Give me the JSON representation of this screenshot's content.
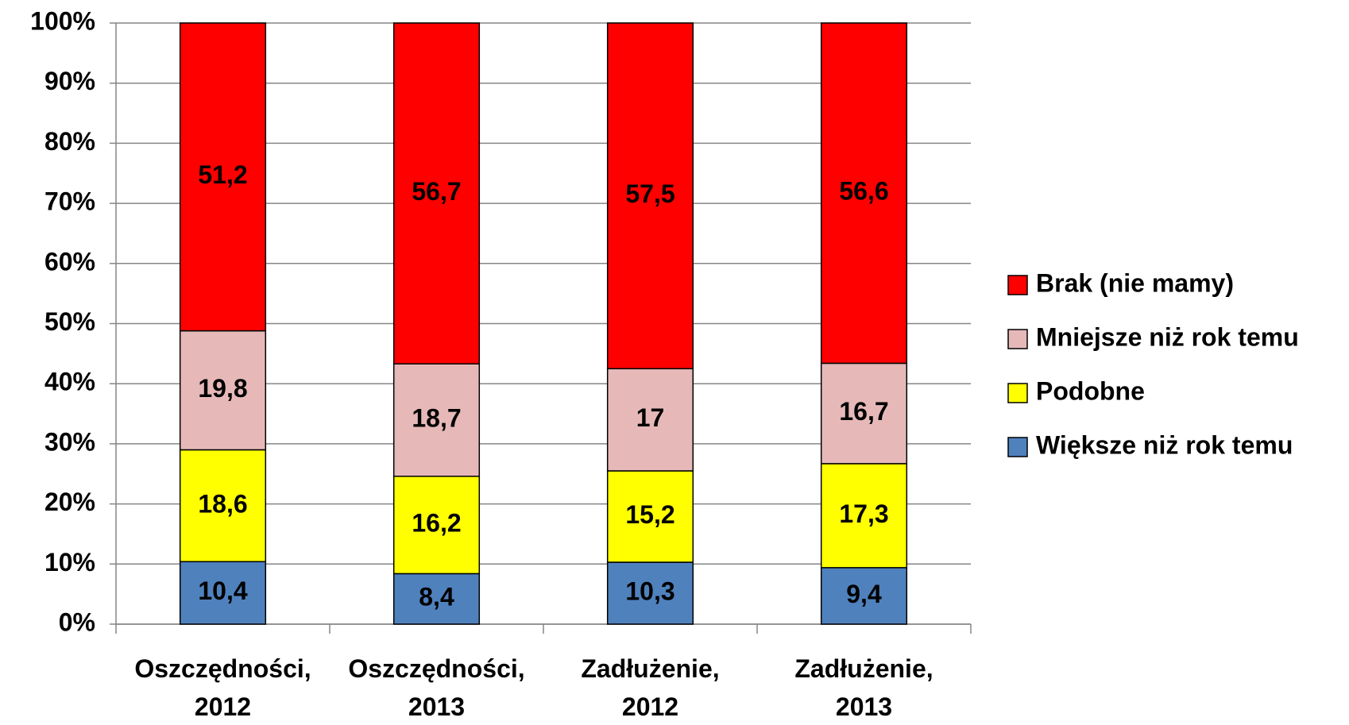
{
  "chart_data": {
    "type": "stacked_bar",
    "categories": [
      "Oszczędności, 2012",
      "Oszczędności, 2013",
      "Zadłużenie, 2012",
      "Zadłużenie, 2013"
    ],
    "series": [
      {
        "name": "Większe niż rok temu",
        "color": "#4f81bd",
        "values": [
          10.4,
          8.4,
          10.3,
          9.4
        ],
        "value_labels": [
          "10,4",
          "8,4",
          "10,3",
          "9,4"
        ]
      },
      {
        "name": "Podobne",
        "color": "#ffff00",
        "values": [
          18.6,
          16.2,
          15.2,
          17.3
        ],
        "value_labels": [
          "18,6",
          "16,2",
          "15,2",
          "17,3"
        ]
      },
      {
        "name": "Mniejsze niż rok temu",
        "color": "#e6b9b8",
        "values": [
          19.8,
          18.7,
          17,
          16.7
        ],
        "value_labels": [
          "19,8",
          "18,7",
          "17",
          "16,7"
        ]
      },
      {
        "name": "Brak (nie mamy)",
        "color": "#ff0000",
        "values": [
          51.2,
          56.7,
          57.5,
          56.6
        ],
        "value_labels": [
          "51,2",
          "56,7",
          "57,5",
          "56,6"
        ]
      }
    ],
    "ylim": [
      0,
      100
    ],
    "yticks": [
      {
        "value": 0,
        "label": "0%"
      },
      {
        "value": 10,
        "label": "10%"
      },
      {
        "value": 20,
        "label": "20%"
      },
      {
        "value": 30,
        "label": "30%"
      },
      {
        "value": 40,
        "label": "40%"
      },
      {
        "value": 50,
        "label": "50%"
      },
      {
        "value": 60,
        "label": "60%"
      },
      {
        "value": 70,
        "label": "70%"
      },
      {
        "value": 80,
        "label": "80%"
      },
      {
        "value": 90,
        "label": "90%"
      },
      {
        "value": 100,
        "label": "100%"
      }
    ],
    "grid": true,
    "legend": "right"
  }
}
